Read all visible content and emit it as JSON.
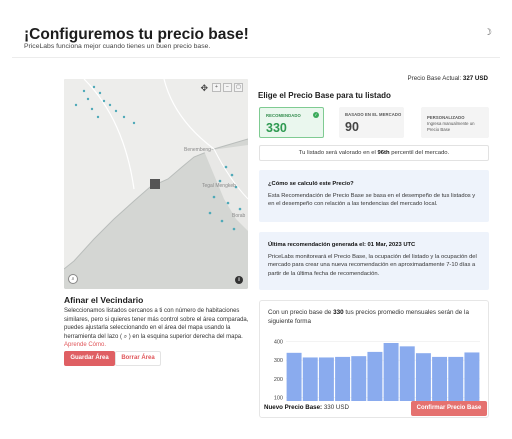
{
  "header": {
    "title": "¡Configuremos tu precio base!",
    "subtitle": "PriceLabs funciona mejor cuando tienes un buen precio base."
  },
  "current_price": {
    "label": "Precio Base Actual:",
    "value": "327 USD"
  },
  "map": {
    "labels": [
      "Benembeng",
      "Tegal Mengkeb",
      "Borab"
    ],
    "tools": {
      "move": "✥",
      "zoom_in": "+",
      "zoom_out": "−",
      "collapse": "▢"
    },
    "info_icon": "i"
  },
  "neighborhood": {
    "title": "Afinar el Vecindario",
    "text": "Seleccionamos listados cercanos a ti con número de habitaciones similares, pero si quieres tener más control sobre el área comparada, puedes ajustarla seleccionando en el área del mapa usando la herramienta del lazo ( ⌕ ) en la esquina superior derecha del mapa. ",
    "link": "Aprende Cómo.",
    "save_button": "Guardar Área",
    "clear_button": "Borrar Área"
  },
  "choose": {
    "title": "Elige el Precio Base para tu listado",
    "cards": {
      "recommended": {
        "label": "RECOMENDADO",
        "value": "330"
      },
      "market": {
        "label": "BASADO EN EL MERCADO",
        "value": "90"
      },
      "custom": {
        "label": "PERSONALIZADO",
        "desc": "Ingresa manualmente un Precio Base"
      }
    }
  },
  "percentile": {
    "prefix": "Tu listado será valorado en el",
    "value": "96th",
    "suffix": "percentil del mercado."
  },
  "info_calc": {
    "question": "¿Cómo se calculó este Precio?",
    "text": "Esta Recomendación de Precio Base se basa en el desempeño de tus listados y en el desempeño con relación a las tendencias del mercado local."
  },
  "info_last": {
    "title": "Última recomendación generada el: 01 Mar, 2023 UTC",
    "text": "PriceLabs monitoreará el Precio Base, la ocupación del listado y la ocupación del mercado para crear una nueva recomendación en aproximadamente 7-10 días a partir de la última fecha de recomendación."
  },
  "chart_caption": {
    "prefix": "Con un precio base de",
    "value": "330",
    "suffix": "tus precios promedio mensuales serán de la siguiente forma"
  },
  "chart_data": {
    "type": "bar",
    "categories": [
      "",
      "",
      "",
      "",
      "",
      "",
      "",
      "",
      "",
      "",
      "",
      ""
    ],
    "values": [
      340,
      315,
      315,
      318,
      322,
      345,
      393,
      375,
      338,
      318,
      318,
      342
    ],
    "yticks": [
      100,
      200,
      300,
      400
    ],
    "ylim": [
      80,
      420
    ],
    "title": "",
    "xlabel": "",
    "ylabel": "",
    "color": "#8aabee"
  },
  "footer": {
    "new_price_label": "Nuevo Precio Base:",
    "new_price_value": "330 USD",
    "confirm_button": "Confirmar Precio Base"
  }
}
